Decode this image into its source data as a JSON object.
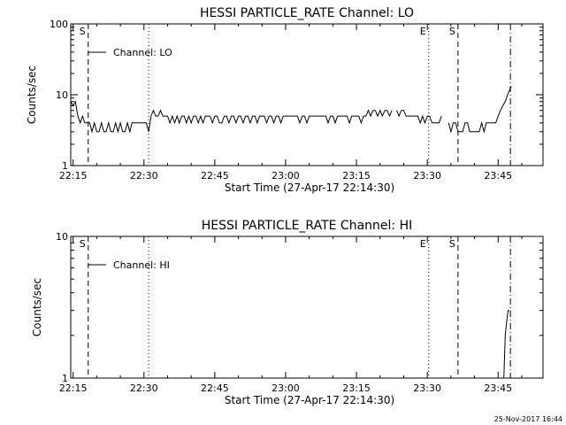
{
  "footer_date": "25-Nov-2017 16:44",
  "chart_data": [
    {
      "type": "line",
      "title": "HESSI PARTICLE_RATE Channel: LO",
      "xlabel": "Start Time (27-Apr-17 22:14:30)",
      "ylabel": "Counts/sec",
      "yscale": "log",
      "ylim": [
        1,
        100
      ],
      "ytick_labels": [
        "1",
        "10",
        "100"
      ],
      "xtick_labels": [
        "22:15",
        "22:30",
        "22:45",
        "23:00",
        "23:15",
        "23:30",
        "23:45"
      ],
      "xlim_minutes": [
        -0.5,
        99.5
      ],
      "xtick_minutes": [
        0,
        15,
        30,
        45,
        60,
        75,
        90
      ],
      "legend": {
        "label": "Channel: LO",
        "placement": "top-left"
      },
      "markers": [
        {
          "label": "S",
          "minute": 3.2,
          "style": "dashed"
        },
        {
          "label": "",
          "minute": 16.0,
          "style": "dotted"
        },
        {
          "label": "E",
          "minute": 75.3,
          "style": "dotted"
        },
        {
          "label": "S",
          "minute": 81.5,
          "style": "dashed"
        },
        {
          "label": "",
          "minute": 92.6,
          "style": "dashdot"
        }
      ],
      "series": [
        {
          "name": "Channel: LO",
          "segments": [
            [
              [
                -0.5,
                8
              ],
              [
                0,
                7
              ],
              [
                0.5,
                8
              ],
              [
                1,
                5
              ],
              [
                1.5,
                4
              ],
              [
                2,
                5
              ],
              [
                2.5,
                4
              ],
              [
                3,
                4
              ],
              [
                3.5,
                4
              ],
              [
                4,
                3
              ],
              [
                4.5,
                4
              ],
              [
                5,
                3
              ],
              [
                5.5,
                3
              ],
              [
                6,
                4
              ],
              [
                6.5,
                3
              ],
              [
                7,
                3
              ],
              [
                7.5,
                4
              ],
              [
                8,
                3
              ],
              [
                8.5,
                3
              ],
              [
                9,
                4
              ],
              [
                9.5,
                3
              ],
              [
                10,
                4
              ],
              [
                10.5,
                3
              ],
              [
                11,
                3
              ],
              [
                11.5,
                4
              ],
              [
                12,
                3
              ],
              [
                12.5,
                4
              ],
              [
                13,
                4
              ],
              [
                13.5,
                4
              ],
              [
                14,
                4
              ],
              [
                14.5,
                4
              ],
              [
                15,
                4
              ],
              [
                15.5,
                4
              ],
              [
                16,
                3
              ],
              [
                16.5,
                5
              ],
              [
                17,
                6
              ],
              [
                17.5,
                5
              ],
              [
                18,
                5
              ],
              [
                18.5,
                6
              ],
              [
                19,
                5
              ],
              [
                19.5,
                5
              ],
              [
                20,
                5
              ],
              [
                20.5,
                4
              ],
              [
                21,
                5
              ],
              [
                21.5,
                4
              ],
              [
                22,
                5
              ],
              [
                22.5,
                4
              ],
              [
                23,
                5
              ],
              [
                23.5,
                5
              ],
              [
                24,
                4
              ],
              [
                24.5,
                5
              ],
              [
                25,
                4
              ],
              [
                25.5,
                5
              ],
              [
                26,
                5
              ],
              [
                26.5,
                4
              ],
              [
                27,
                5
              ],
              [
                27.5,
                4
              ],
              [
                28,
                5
              ],
              [
                28.5,
                5
              ],
              [
                29,
                5
              ],
              [
                29.5,
                4
              ],
              [
                30,
                5
              ],
              [
                30.5,
                5
              ],
              [
                31,
                4
              ],
              [
                31.5,
                4
              ],
              [
                32,
                5
              ],
              [
                32.5,
                5
              ],
              [
                33,
                4
              ],
              [
                33.5,
                5
              ],
              [
                34,
                5
              ],
              [
                34.5,
                4
              ],
              [
                35,
                5
              ],
              [
                35.5,
                5
              ],
              [
                36,
                4
              ],
              [
                36.5,
                5
              ],
              [
                37,
                5
              ],
              [
                37.5,
                4
              ],
              [
                38,
                5
              ],
              [
                38.5,
                5
              ],
              [
                39,
                4
              ],
              [
                39.5,
                5
              ],
              [
                40,
                5
              ],
              [
                40.5,
                5
              ],
              [
                41,
                4
              ],
              [
                41.5,
                5
              ],
              [
                42,
                5
              ],
              [
                42.5,
                4
              ],
              [
                43,
                5
              ],
              [
                43.5,
                5
              ],
              [
                44,
                4
              ],
              [
                44.5,
                5
              ],
              [
                45,
                5
              ],
              [
                45.5,
                5
              ],
              [
                46,
                5
              ],
              [
                46.5,
                5
              ],
              [
                47,
                5
              ],
              [
                47.5,
                5
              ],
              [
                48,
                4
              ],
              [
                48.5,
                5
              ],
              [
                49,
                5
              ],
              [
                49.5,
                4
              ],
              [
                50,
                5
              ],
              [
                50.5,
                5
              ],
              [
                51,
                5
              ],
              [
                51.5,
                5
              ],
              [
                52,
                5
              ],
              [
                52.5,
                5
              ],
              [
                53,
                5
              ],
              [
                53.5,
                5
              ],
              [
                54,
                4
              ],
              [
                54.5,
                5
              ],
              [
                55,
                5
              ],
              [
                55.5,
                4
              ],
              [
                56,
                5
              ],
              [
                56.5,
                5
              ],
              [
                57,
                5
              ],
              [
                57.5,
                5
              ],
              [
                58,
                5
              ],
              [
                58.5,
                4
              ],
              [
                59,
                5
              ],
              [
                59.5,
                5
              ],
              [
                60,
                5
              ],
              [
                60.5,
                5
              ],
              [
                61,
                4
              ],
              [
                61.5,
                5
              ],
              [
                62,
                5
              ],
              [
                62.5,
                6
              ],
              [
                63,
                5
              ],
              [
                63.5,
                6
              ],
              [
                64,
                6
              ],
              [
                64.5,
                5
              ],
              [
                65,
                6
              ],
              [
                65.5,
                5
              ],
              [
                66,
                6
              ],
              [
                66.5,
                6
              ],
              [
                67,
                5
              ],
              [
                67.5,
                6
              ]
            ],
            [
              [
                68.5,
                6
              ],
              [
                69,
                5
              ],
              [
                69.5,
                6
              ],
              [
                70,
                6
              ],
              [
                70.5,
                5
              ],
              [
                71,
                5
              ],
              [
                71.5,
                5
              ],
              [
                72,
                5
              ],
              [
                72.5,
                5
              ],
              [
                73,
                5
              ],
              [
                73.5,
                4
              ],
              [
                74,
                5
              ],
              [
                74.5,
                4
              ],
              [
                75,
                5
              ],
              [
                75.5,
                5
              ],
              [
                76,
                4
              ],
              [
                76.5,
                4
              ],
              [
                77,
                4
              ],
              [
                77.5,
                4
              ],
              [
                78,
                5
              ]
            ],
            [
              [
                79.5,
                4
              ],
              [
                80,
                3
              ],
              [
                80.5,
                4
              ],
              [
                81,
                4
              ],
              [
                81.5,
                3
              ],
              [
                82,
                3
              ],
              [
                82.5,
                3
              ],
              [
                83,
                4
              ],
              [
                83.5,
                4
              ],
              [
                84,
                3
              ],
              [
                84.5,
                3
              ],
              [
                85,
                3
              ],
              [
                85.5,
                3
              ],
              [
                86,
                3
              ],
              [
                86.5,
                4
              ],
              [
                87,
                3
              ],
              [
                87.5,
                4
              ],
              [
                88,
                4
              ],
              [
                88.5,
                4
              ],
              [
                89,
                4
              ],
              [
                89.5,
                4
              ],
              [
                90,
                5
              ],
              [
                90.5,
                6
              ],
              [
                91,
                7
              ],
              [
                91.5,
                8
              ],
              [
                92,
                10
              ],
              [
                92.5,
                12
              ],
              [
                92.8,
                13
              ]
            ]
          ]
        }
      ]
    },
    {
      "type": "line",
      "title": "HESSI PARTICLE_RATE Channel: HI",
      "xlabel": "Start Time (27-Apr-17 22:14:30)",
      "ylabel": "Counts/sec",
      "yscale": "log",
      "ylim": [
        1,
        10
      ],
      "ytick_labels": [
        "1",
        "10"
      ],
      "xtick_labels": [
        "22:15",
        "22:30",
        "22:45",
        "23:00",
        "23:15",
        "23:30",
        "23:45"
      ],
      "xlim_minutes": [
        -0.5,
        99.5
      ],
      "xtick_minutes": [
        0,
        15,
        30,
        45,
        60,
        75,
        90
      ],
      "legend": {
        "label": "Channel: HI",
        "placement": "top-left"
      },
      "markers": [
        {
          "label": "S",
          "minute": 3.2,
          "style": "dashed"
        },
        {
          "label": "",
          "minute": 16.0,
          "style": "dotted"
        },
        {
          "label": "E",
          "minute": 75.3,
          "style": "dotted"
        },
        {
          "label": "S",
          "minute": 81.5,
          "style": "dashed"
        },
        {
          "label": "",
          "minute": 92.6,
          "style": "dashdot"
        }
      ],
      "series": [
        {
          "name": "Channel: HI",
          "segments": [
            [
              [
                91.2,
                1
              ],
              [
                91.5,
                2
              ],
              [
                91.8,
                2.5
              ],
              [
                92.1,
                3
              ],
              [
                92.4,
                3
              ]
            ]
          ]
        }
      ]
    }
  ]
}
